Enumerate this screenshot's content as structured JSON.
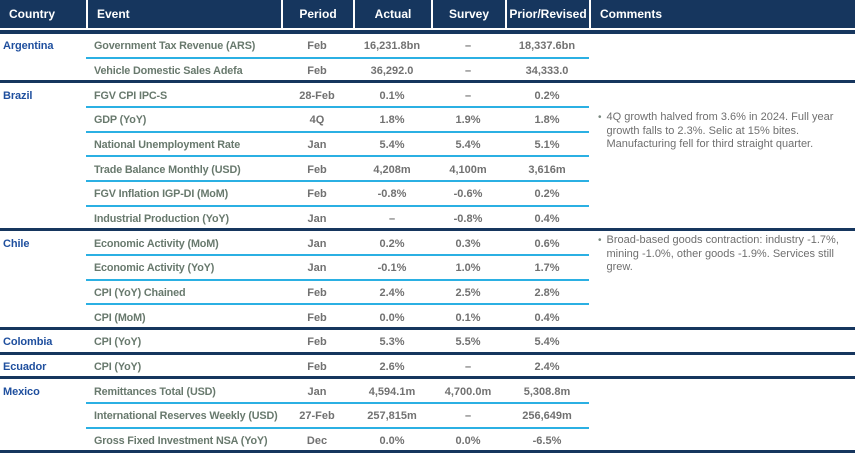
{
  "colors": {
    "header_bg": "#16365e",
    "header_text": "#ffffff",
    "country_text": "#1f4f9e",
    "event_text": "#68796d",
    "value_text": "#717171",
    "comment_text": "#6f6f6f",
    "rule_cyan": "#2bb0e3",
    "rule_navy": "#16365e"
  },
  "header": {
    "columns": [
      {
        "label": "Country"
      },
      {
        "label": "Event"
      },
      {
        "label": "Period"
      },
      {
        "label": "Actual"
      },
      {
        "label": "Survey"
      },
      {
        "label": "Prior/Revised"
      },
      {
        "label": "Comments"
      }
    ]
  },
  "table": {
    "comment_bullet": "•",
    "rows": [
      {
        "country": "Argentina",
        "event": "Government Tax Revenue (ARS)",
        "period": "Feb",
        "actual": "16,231.8bn",
        "survey": "–",
        "prior": "18,337.6bn",
        "comment": "",
        "sep": "cyan"
      },
      {
        "country": "",
        "event": "Vehicle Domestic Sales Adefa",
        "period": "Feb",
        "actual": "36,292.0",
        "survey": "–",
        "prior": "34,333.0",
        "comment": "",
        "sep": "navy"
      },
      {
        "country": "Brazil",
        "event": "FGV CPI IPC-S",
        "period": "28-Feb",
        "actual": "0.1%",
        "survey": "–",
        "prior": "0.2%",
        "comment": "",
        "sep": "cyan"
      },
      {
        "country": "",
        "event": "GDP (YoY)",
        "period": "4Q",
        "actual": "1.8%",
        "survey": "1.9%",
        "prior": "1.8%",
        "comment": "4Q growth halved from 3.6% in 2024. Full year growth falls to 2.3%. Selic at 15% bites. Manufacturing fell for third straight quarter.",
        "sep": "cyan"
      },
      {
        "country": "",
        "event": "National Unemployment Rate",
        "period": "Jan",
        "actual": "5.4%",
        "survey": "5.4%",
        "prior": "5.1%",
        "comment": "",
        "sep": "cyan"
      },
      {
        "country": "",
        "event": "Trade Balance Monthly (USD)",
        "period": "Feb",
        "actual": "4,208m",
        "survey": "4,100m",
        "prior": "3,616m",
        "comment": "",
        "sep": "cyan"
      },
      {
        "country": "",
        "event": "FGV Inflation IGP-DI (MoM)",
        "period": "Feb",
        "actual": "-0.8%",
        "survey": "-0.6%",
        "prior": "0.2%",
        "comment": "",
        "sep": "cyan"
      },
      {
        "country": "",
        "event": "Industrial Production (YoY)",
        "period": "Jan",
        "actual": "–",
        "survey": "-0.8%",
        "prior": "0.4%",
        "comment": "",
        "sep": "navy"
      },
      {
        "country": "Chile",
        "event": "Economic Activity (MoM)",
        "period": "Jan",
        "actual": "0.2%",
        "survey": "0.3%",
        "prior": "0.6%",
        "comment": "Broad-based goods contraction: industry -1.7%, mining -1.0%, other goods -1.9%. Services still grew.",
        "sep": "cyan"
      },
      {
        "country": "",
        "event": "Economic Activity (YoY)",
        "period": "Jan",
        "actual": "-0.1%",
        "survey": "1.0%",
        "prior": "1.7%",
        "comment": "",
        "sep": "cyan"
      },
      {
        "country": "",
        "event": "CPI (YoY) Chained",
        "period": "Feb",
        "actual": "2.4%",
        "survey": "2.5%",
        "prior": "2.8%",
        "comment": "",
        "sep": "cyan"
      },
      {
        "country": "",
        "event": "CPI (MoM)",
        "period": "Feb",
        "actual": "0.0%",
        "survey": "0.1%",
        "prior": "0.4%",
        "comment": "",
        "sep": "navy"
      },
      {
        "country": "Colombia",
        "event": "CPI (YoY)",
        "period": "Feb",
        "actual": "5.3%",
        "survey": "5.5%",
        "prior": "5.4%",
        "comment": "",
        "sep": "navy"
      },
      {
        "country": "Ecuador",
        "event": "CPI (YoY)",
        "period": "Feb",
        "actual": "2.6%",
        "survey": "–",
        "prior": "2.4%",
        "comment": "",
        "sep": "navy"
      },
      {
        "country": "Mexico",
        "event": "Remittances Total (USD)",
        "period": "Jan",
        "actual": "4,594.1m",
        "survey": "4,700.0m",
        "prior": "5,308.8m",
        "comment": "",
        "sep": "cyan"
      },
      {
        "country": "",
        "event": "International Reserves Weekly (USD)",
        "period": "27-Feb",
        "actual": "257,815m",
        "survey": "–",
        "prior": "256,649m",
        "comment": "",
        "sep": "cyan"
      },
      {
        "country": "",
        "event": "Gross Fixed Investment NSA (YoY)",
        "period": "Dec",
        "actual": "0.0%",
        "survey": "0.0%",
        "prior": "-6.5%",
        "comment": "",
        "sep": "navy"
      }
    ]
  }
}
